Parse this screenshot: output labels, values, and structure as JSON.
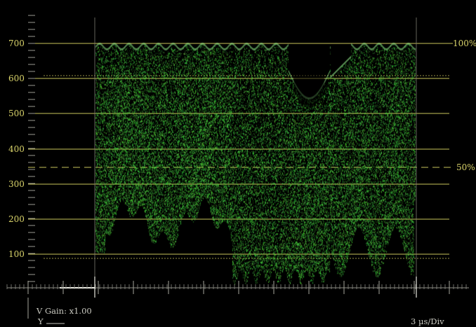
{
  "graticule": {
    "level_labels": [
      "700",
      "600",
      "500",
      "400",
      "300",
      "200",
      "100"
    ],
    "percent_top": "100%",
    "percent_mid": "50%"
  },
  "status": {
    "gain": "V Gain: x1.00",
    "channel": "Y",
    "timebase": "3 µs/Div"
  },
  "colors": {
    "trace": "#4fd24a",
    "graticule": "#c9c45a",
    "baseline": "#e8e8e0",
    "background": "#000000"
  }
}
